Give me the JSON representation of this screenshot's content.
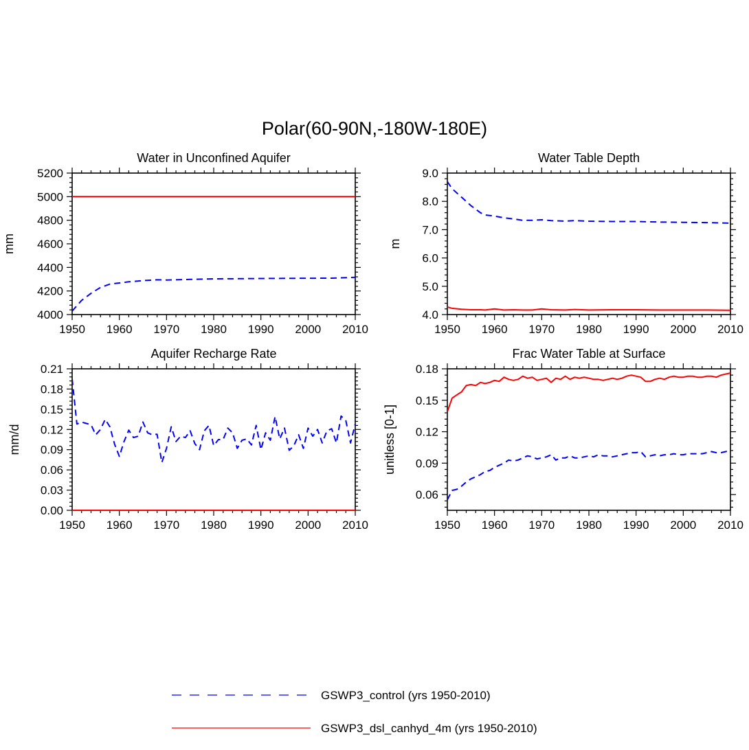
{
  "main_title": "Polar(60-90N,-180W-180E)",
  "legend": [
    {
      "label": "GSWP3_control (yrs 1950-2010)",
      "color": "#0000ff",
      "style": "dashed"
    },
    {
      "label": "GSWP3_dsl_canhyd_4m (yrs 1950-2010)",
      "color": "#ff0000",
      "style": "solid"
    }
  ],
  "chart_data": [
    {
      "type": "line",
      "title": "Water in Unconfined Aquifer",
      "xlabel": "",
      "ylabel": "mm",
      "xlim": [
        1950,
        2010
      ],
      "ylim": [
        4000,
        5200
      ],
      "xticks": [
        "1950",
        "1960",
        "1970",
        "1980",
        "1990",
        "2000",
        "2010"
      ],
      "yticks": [
        "4000",
        "4200",
        "4400",
        "4600",
        "4800",
        "5000",
        "5200"
      ],
      "x": [
        1950,
        1952,
        1954,
        1956,
        1958,
        1960,
        1962,
        1965,
        1968,
        1970,
        1975,
        1980,
        1985,
        1990,
        1995,
        2000,
        2005,
        2010
      ],
      "series": [
        {
          "name": "GSWP3_control (yrs 1950-2010)",
          "color": "#0000ff",
          "style": "dashed",
          "values": [
            4030,
            4120,
            4180,
            4230,
            4258,
            4268,
            4278,
            4288,
            4295,
            4293,
            4298,
            4303,
            4304,
            4306,
            4307,
            4308,
            4309,
            4316
          ]
        },
        {
          "name": "GSWP3_dsl_canhyd_4m (yrs 1950-2010)",
          "color": "#ff0000",
          "style": "solid",
          "values": [
            5000,
            5000,
            5000,
            5000,
            5000,
            5000,
            5000,
            5000,
            5000,
            5000,
            5000,
            5000,
            5000,
            5000,
            5000,
            5000,
            5000,
            5000
          ]
        }
      ]
    },
    {
      "type": "line",
      "title": "Water Table Depth",
      "xlabel": "",
      "ylabel": "m",
      "xlim": [
        1950,
        2010
      ],
      "ylim": [
        4.0,
        9.0
      ],
      "xticks": [
        "1950",
        "1960",
        "1970",
        "1980",
        "1990",
        "2000",
        "2010"
      ],
      "yticks": [
        "4.0",
        "5.0",
        "6.0",
        "7.0",
        "8.0",
        "9.0"
      ],
      "x": [
        1950,
        1951,
        1953,
        1955,
        1957,
        1958,
        1960,
        1962,
        1964,
        1966,
        1968,
        1970,
        1972,
        1975,
        1977,
        1980,
        1985,
        1990,
        1995,
        2000,
        2005,
        2010
      ],
      "series": [
        {
          "name": "GSWP3_control (yrs 1950-2010)",
          "color": "#0000ff",
          "style": "dashed",
          "values": [
            8.7,
            8.45,
            8.15,
            7.85,
            7.6,
            7.52,
            7.48,
            7.42,
            7.38,
            7.33,
            7.33,
            7.35,
            7.32,
            7.3,
            7.32,
            7.3,
            7.29,
            7.29,
            7.27,
            7.26,
            7.25,
            7.23
          ]
        },
        {
          "name": "GSWP3_dsl_canhyd_4m (yrs 1950-2010)",
          "color": "#ff0000",
          "style": "solid",
          "values": [
            4.27,
            4.22,
            4.19,
            4.17,
            4.17,
            4.16,
            4.2,
            4.16,
            4.17,
            4.16,
            4.16,
            4.2,
            4.17,
            4.16,
            4.18,
            4.16,
            4.17,
            4.17,
            4.16,
            4.16,
            4.16,
            4.15
          ]
        }
      ]
    },
    {
      "type": "line",
      "title": "Aquifer Recharge Rate",
      "xlabel": "",
      "ylabel": "mm/d",
      "xlim": [
        1950,
        2010
      ],
      "ylim": [
        0.0,
        0.21
      ],
      "xticks": [
        "1950",
        "1960",
        "1970",
        "1980",
        "1990",
        "2000",
        "2010"
      ],
      "yticks": [
        "0.00",
        "0.03",
        "0.06",
        "0.09",
        "0.12",
        "0.15",
        "0.18",
        "0.21"
      ],
      "x": [
        1950,
        1951,
        1952,
        1953,
        1954,
        1955,
        1956,
        1957,
        1958,
        1959,
        1960,
        1961,
        1962,
        1963,
        1964,
        1965,
        1966,
        1967,
        1968,
        1969,
        1970,
        1971,
        1972,
        1973,
        1974,
        1975,
        1976,
        1977,
        1978,
        1979,
        1980,
        1981,
        1982,
        1983,
        1984,
        1985,
        1986,
        1987,
        1988,
        1989,
        1990,
        1991,
        1992,
        1993,
        1994,
        1995,
        1996,
        1997,
        1998,
        1999,
        2000,
        2001,
        2002,
        2003,
        2004,
        2005,
        2006,
        2007,
        2008,
        2009,
        2010
      ],
      "series": [
        {
          "name": "GSWP3_control (yrs 1950-2010)",
          "color": "#0000ff",
          "style": "dashed",
          "values": [
            0.195,
            0.128,
            0.131,
            0.129,
            0.127,
            0.112,
            0.12,
            0.135,
            0.124,
            0.098,
            0.08,
            0.102,
            0.119,
            0.108,
            0.11,
            0.131,
            0.115,
            0.112,
            0.113,
            0.071,
            0.092,
            0.124,
            0.102,
            0.11,
            0.108,
            0.118,
            0.099,
            0.09,
            0.118,
            0.126,
            0.096,
            0.105,
            0.105,
            0.122,
            0.115,
            0.092,
            0.104,
            0.106,
            0.097,
            0.126,
            0.09,
            0.115,
            0.104,
            0.139,
            0.106,
            0.122,
            0.089,
            0.096,
            0.112,
            0.092,
            0.122,
            0.11,
            0.12,
            0.1,
            0.118,
            0.121,
            0.1,
            0.14,
            0.133,
            0.1,
            0.128
          ]
        },
        {
          "name": "GSWP3_dsl_canhyd_4m (yrs 1950-2010)",
          "color": "#ff0000",
          "style": "solid",
          "values": [
            0.0,
            0.0,
            0.0,
            0.0,
            0.0,
            0.0,
            0.0,
            0.0,
            0.0,
            0.0,
            0.0,
            0.0,
            0.0,
            0.0,
            0.0,
            0.0,
            0.0,
            0.0,
            0.0,
            0.0,
            0.0,
            0.0,
            0.0,
            0.0,
            0.0,
            0.0,
            0.0,
            0.0,
            0.0,
            0.0,
            0.0,
            0.0,
            0.0,
            0.0,
            0.0,
            0.0,
            0.0,
            0.0,
            0.0,
            0.0,
            0.0,
            0.0,
            0.0,
            0.0,
            0.0,
            0.0,
            0.0,
            0.0,
            0.0,
            0.0,
            0.0,
            0.0,
            0.0,
            0.0,
            0.0,
            0.0,
            0.0,
            0.0,
            0.0,
            0.0,
            0.0
          ]
        }
      ]
    },
    {
      "type": "line",
      "title": "Frac Water Table at Surface",
      "xlabel": "",
      "ylabel": "unitless [0-1]",
      "xlim": [
        1950,
        2010
      ],
      "ylim": [
        0.045,
        0.18
      ],
      "xticks": [
        "1950",
        "1960",
        "1970",
        "1980",
        "1990",
        "2000",
        "2010"
      ],
      "yticks": [
        "0.06",
        "0.09",
        "0.12",
        "0.15",
        "0.18"
      ],
      "x": [
        1950,
        1951,
        1952,
        1953,
        1954,
        1955,
        1956,
        1957,
        1958,
        1959,
        1960,
        1961,
        1962,
        1963,
        1964,
        1965,
        1966,
        1967,
        1968,
        1969,
        1970,
        1971,
        1972,
        1973,
        1974,
        1975,
        1976,
        1977,
        1978,
        1979,
        1980,
        1981,
        1982,
        1983,
        1984,
        1985,
        1986,
        1987,
        1988,
        1989,
        1990,
        1991,
        1992,
        1993,
        1994,
        1995,
        1996,
        1997,
        1998,
        1999,
        2000,
        2001,
        2002,
        2003,
        2004,
        2005,
        2006,
        2007,
        2008,
        2009,
        2010
      ],
      "series": [
        {
          "name": "GSWP3_control (yrs 1950-2010)",
          "color": "#0000ff",
          "style": "dashed",
          "values": [
            0.055,
            0.064,
            0.065,
            0.068,
            0.072,
            0.075,
            0.077,
            0.079,
            0.082,
            0.083,
            0.086,
            0.088,
            0.09,
            0.093,
            0.092,
            0.093,
            0.095,
            0.097,
            0.096,
            0.094,
            0.095,
            0.096,
            0.098,
            0.093,
            0.095,
            0.095,
            0.097,
            0.095,
            0.095,
            0.096,
            0.097,
            0.096,
            0.098,
            0.097,
            0.097,
            0.096,
            0.097,
            0.098,
            0.099,
            0.1,
            0.1,
            0.101,
            0.096,
            0.097,
            0.098,
            0.097,
            0.098,
            0.098,
            0.099,
            0.098,
            0.098,
            0.099,
            0.099,
            0.099,
            0.099,
            0.1,
            0.101,
            0.1,
            0.1,
            0.101,
            0.102
          ]
        },
        {
          "name": "GSWP3_dsl_canhyd_4m (yrs 1950-2010)",
          "color": "#ff0000",
          "style": "solid",
          "values": [
            0.139,
            0.152,
            0.155,
            0.158,
            0.164,
            0.165,
            0.164,
            0.167,
            0.166,
            0.167,
            0.169,
            0.168,
            0.172,
            0.17,
            0.169,
            0.17,
            0.173,
            0.171,
            0.172,
            0.169,
            0.17,
            0.171,
            0.167,
            0.171,
            0.17,
            0.173,
            0.17,
            0.172,
            0.171,
            0.172,
            0.171,
            0.17,
            0.17,
            0.169,
            0.17,
            0.171,
            0.17,
            0.171,
            0.173,
            0.174,
            0.173,
            0.172,
            0.168,
            0.168,
            0.17,
            0.171,
            0.17,
            0.172,
            0.173,
            0.172,
            0.172,
            0.173,
            0.173,
            0.172,
            0.172,
            0.173,
            0.173,
            0.172,
            0.174,
            0.175,
            0.176
          ]
        }
      ]
    }
  ]
}
